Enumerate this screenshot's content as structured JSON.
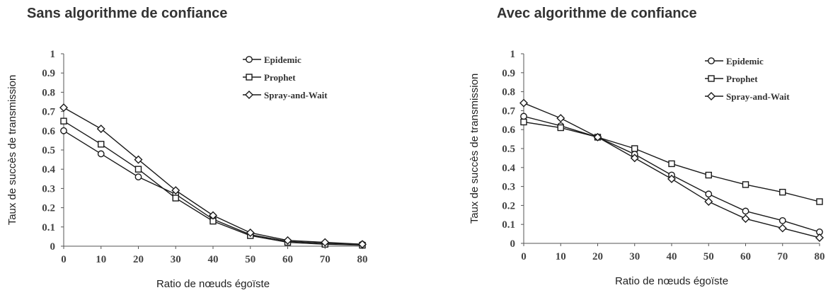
{
  "chart_data": [
    {
      "type": "line",
      "title": "Sans algorithme de confiance",
      "xlabel": "Ratio de nœuds égoïste",
      "ylabel": "Taux de succès de transmission",
      "x": [
        0,
        10,
        20,
        30,
        40,
        50,
        60,
        70,
        80
      ],
      "xticks": [
        "0",
        "10",
        "20",
        "30",
        "40",
        "50",
        "60",
        "70",
        "80"
      ],
      "yticks": [
        "0",
        "0.1",
        "0.2",
        "0.3",
        "0.4",
        "0.5",
        "0.6",
        "0.7",
        "0.8",
        "0.9",
        "1"
      ],
      "xlim": [
        0,
        80
      ],
      "ylim": [
        0,
        1
      ],
      "grid": false,
      "legend_position": "top-right",
      "series": [
        {
          "name": "Epidemic",
          "marker": "circle",
          "values": [
            0.6,
            0.48,
            0.36,
            0.27,
            0.14,
            0.06,
            0.025,
            0.015,
            0.01
          ]
        },
        {
          "name": "Prophet",
          "marker": "square",
          "values": [
            0.65,
            0.53,
            0.4,
            0.25,
            0.13,
            0.055,
            0.02,
            0.01,
            0.005
          ]
        },
        {
          "name": "Spray-and-Wait",
          "marker": "diamond",
          "values": [
            0.72,
            0.61,
            0.45,
            0.29,
            0.16,
            0.07,
            0.03,
            0.02,
            0.01
          ]
        }
      ]
    },
    {
      "type": "line",
      "title": "Avec algorithme de confiance",
      "xlabel": "Ratio de nœuds égoïste",
      "ylabel": "Taux de succès de transmission",
      "x": [
        0,
        10,
        20,
        30,
        40,
        50,
        60,
        70,
        80
      ],
      "xticks": [
        "0",
        "10",
        "20",
        "30",
        "40",
        "50",
        "60",
        "70",
        "80"
      ],
      "yticks": [
        "0",
        "0.1",
        "0.2",
        "0.3",
        "0.4",
        "0.5",
        "0.6",
        "0.7",
        "0.8",
        "0.9",
        "1"
      ],
      "xlim": [
        0,
        80
      ],
      "ylim": [
        0,
        1
      ],
      "grid": false,
      "legend_position": "top-right",
      "series": [
        {
          "name": "Epidemic",
          "marker": "circle",
          "values": [
            0.67,
            0.62,
            0.56,
            0.47,
            0.36,
            0.26,
            0.17,
            0.12,
            0.06
          ]
        },
        {
          "name": "Prophet",
          "marker": "square",
          "values": [
            0.64,
            0.61,
            0.56,
            0.5,
            0.42,
            0.36,
            0.31,
            0.27,
            0.22
          ]
        },
        {
          "name": "Spray-and-Wait",
          "marker": "diamond",
          "values": [
            0.74,
            0.66,
            0.56,
            0.45,
            0.34,
            0.22,
            0.13,
            0.08,
            0.03
          ]
        }
      ]
    }
  ]
}
